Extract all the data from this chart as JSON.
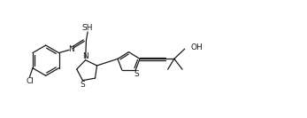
{
  "bg_color": "#ffffff",
  "line_color": "#1a1a1a",
  "lw": 0.9,
  "fs": 6.5,
  "figsize": [
    3.47,
    1.33
  ],
  "dpi": 100,
  "xlim": [
    0.0,
    10.5
  ],
  "ylim": [
    0.3,
    4.0
  ]
}
